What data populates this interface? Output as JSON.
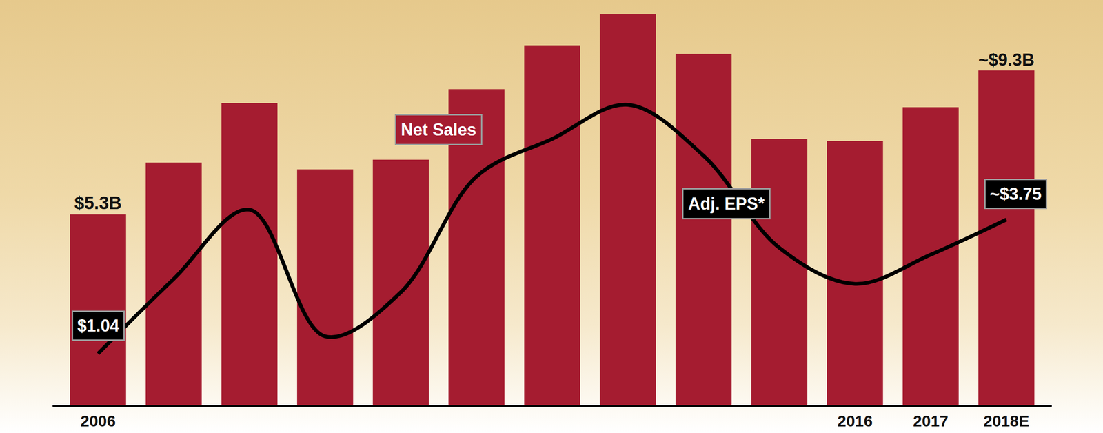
{
  "chart_data": {
    "type": "bar",
    "categories": [
      "2006",
      null,
      null,
      null,
      null,
      null,
      null,
      null,
      null,
      null,
      "2016",
      "2017",
      "2018E"
    ],
    "series": [
      {
        "name": "Net Sales",
        "type": "bar",
        "color": "#a51c30",
        "values": [
          5.3,
          6.74,
          8.4,
          6.55,
          6.82,
          8.78,
          10.0,
          10.86,
          9.76,
          7.4,
          7.34,
          8.28,
          9.3
        ],
        "value_labels": [
          "$5.3B",
          null,
          null,
          null,
          null,
          null,
          null,
          null,
          null,
          null,
          null,
          null,
          "~$9.3B"
        ]
      },
      {
        "name": "Adj. EPS*",
        "type": "line",
        "axis": "y2",
        "color": "#000000",
        "line_style": "solid",
        "values": [
          1.04,
          2.55,
          3.95,
          1.39,
          2.28,
          4.62,
          5.38,
          6.07,
          5.04,
          3.18,
          2.45,
          3.04,
          3.75
        ],
        "value_labels": [
          "$1.04",
          null,
          null,
          null,
          null,
          null,
          null,
          null,
          null,
          null,
          null,
          null,
          "~$3.75"
        ]
      }
    ],
    "ylim": [
      0,
      11
    ],
    "y2lim": [
      0,
      8
    ],
    "data_labels": true,
    "tick_labels": "x",
    "grid": false
  }
}
